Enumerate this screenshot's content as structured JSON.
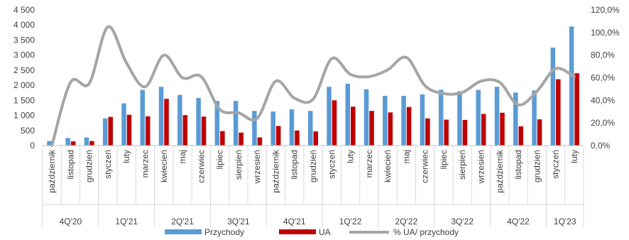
{
  "chart_data": {
    "type": "bar",
    "categories": [
      "październik",
      "listopad",
      "grudzień",
      "styczeń",
      "luty",
      "marzec",
      "kwiecień",
      "maj",
      "czerwiec",
      "lipiec",
      "sierpień",
      "wrzesień",
      "październik",
      "listopad",
      "grudzień",
      "styczeń",
      "luty",
      "marzec",
      "kwiecień",
      "maj",
      "czerwiec",
      "lipiec",
      "sierpień",
      "wrzesień",
      "październik",
      "listopad",
      "grudzień",
      "styczeń",
      "luty"
    ],
    "groups": [
      {
        "label": "4Q'20",
        "count": 3
      },
      {
        "label": "1Q'21",
        "count": 3
      },
      {
        "label": "2Q'21",
        "count": 3
      },
      {
        "label": "3Q'21",
        "count": 3
      },
      {
        "label": "4Q'21",
        "count": 3
      },
      {
        "label": "1Q'22",
        "count": 3
      },
      {
        "label": "2Q'22",
        "count": 3
      },
      {
        "label": "3Q'22",
        "count": 3
      },
      {
        "label": "4Q'22",
        "count": 3
      },
      {
        "label": "1Q'23",
        "count": 2
      }
    ],
    "series": [
      {
        "name": "Przychody",
        "color": "#5b9bd5",
        "axis": "left",
        "values": [
          150,
          250,
          270,
          900,
          1400,
          1850,
          1950,
          1680,
          1580,
          1480,
          1480,
          1150,
          1130,
          1200,
          1150,
          1950,
          2050,
          1870,
          1650,
          1650,
          1700,
          1850,
          1800,
          1850,
          1950,
          1760,
          1830,
          3250,
          3950
        ]
      },
      {
        "name": "UA",
        "color": "#c00000",
        "axis": "left",
        "values": [
          0,
          140,
          150,
          950,
          1020,
          970,
          1550,
          1010,
          960,
          480,
          430,
          270,
          650,
          500,
          470,
          1500,
          1290,
          1150,
          1100,
          1280,
          900,
          860,
          850,
          1050,
          1090,
          640,
          870,
          2200,
          2400
        ]
      },
      {
        "name": "% UA/ przychody",
        "color": "#a5a5a5",
        "axis": "right",
        "type": "line",
        "values": [
          0.0,
          56.0,
          55.0,
          105.0,
          73.0,
          52.0,
          80.0,
          60.0,
          61.0,
          32.0,
          29.0,
          24.0,
          57.0,
          42.0,
          41.0,
          77.0,
          63.0,
          61.0,
          67.0,
          78.0,
          53.0,
          46.0,
          47.0,
          57.0,
          56.0,
          36.0,
          48.0,
          68.0,
          61.0
        ]
      }
    ],
    "left_axis": {
      "ylim": [
        0,
        4500
      ],
      "ticks": [
        0,
        500,
        1000,
        1500,
        2000,
        2500,
        3000,
        3500,
        4000,
        4500
      ],
      "tick_labels": [
        "0",
        "500",
        "1 000",
        "1 500",
        "2 000",
        "2 500",
        "3 000",
        "3 500",
        "4 000",
        "4 500"
      ]
    },
    "right_axis": {
      "ylim": [
        0,
        120
      ],
      "ticks": [
        0,
        20,
        40,
        60,
        80,
        100,
        120
      ],
      "tick_labels": [
        "0,0%",
        "20,0%",
        "40,0%",
        "60,0%",
        "80,0%",
        "100,0%",
        "120,0%"
      ]
    },
    "legend": {
      "placement": "bottom",
      "entries": [
        "Przychody",
        "UA",
        "% UA/ przychody"
      ]
    },
    "grid": false
  }
}
